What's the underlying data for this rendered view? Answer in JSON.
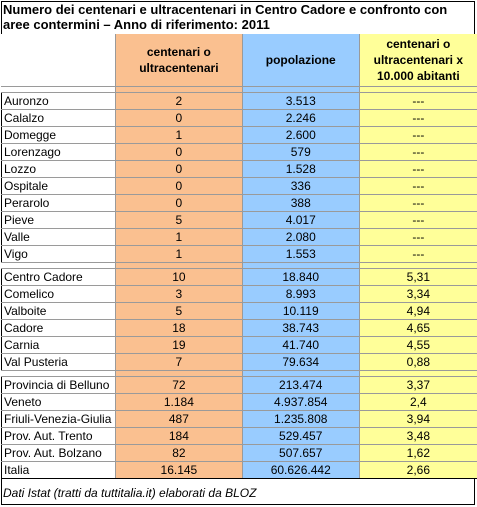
{
  "title": "Numero dei centenari e ultracentenari in Centro Cadore e confronto con aree contermini – Anno di riferimento: 2011",
  "headers": {
    "col1": "centenari o ultracentenari",
    "col2": "popolazione",
    "col3": "centenari o ultracentenari x 10.000 abitanti"
  },
  "group1": [
    {
      "name": "Auronzo",
      "cent": "2",
      "pop": "3.513",
      "rate": "---"
    },
    {
      "name": "Calalzo",
      "cent": "0",
      "pop": "2.246",
      "rate": "---"
    },
    {
      "name": "Domegge",
      "cent": "1",
      "pop": "2.600",
      "rate": "---"
    },
    {
      "name": "Lorenzago",
      "cent": "0",
      "pop": "579",
      "rate": "---"
    },
    {
      "name": "Lozzo",
      "cent": "0",
      "pop": "1.528",
      "rate": "---"
    },
    {
      "name": "Ospitale",
      "cent": "0",
      "pop": "336",
      "rate": "---"
    },
    {
      "name": "Perarolo",
      "cent": "0",
      "pop": "388",
      "rate": "---"
    },
    {
      "name": "Pieve",
      "cent": "5",
      "pop": "4.017",
      "rate": "---"
    },
    {
      "name": "Valle",
      "cent": "1",
      "pop": "2.080",
      "rate": "---"
    },
    {
      "name": "Vigo",
      "cent": "1",
      "pop": "1.553",
      "rate": "---"
    }
  ],
  "group2": [
    {
      "name": "Centro Cadore",
      "cent": "10",
      "pop": "18.840",
      "rate": "5,31"
    },
    {
      "name": "Comelico",
      "cent": "3",
      "pop": "8.993",
      "rate": "3,34"
    },
    {
      "name": "Valboite",
      "cent": "5",
      "pop": "10.119",
      "rate": "4,94"
    },
    {
      "name": "Cadore",
      "cent": "18",
      "pop": "38.743",
      "rate": "4,65"
    },
    {
      "name": "Carnia",
      "cent": "19",
      "pop": "41.740",
      "rate": "4,55"
    },
    {
      "name": "Val Pusteria",
      "cent": "7",
      "pop": "79.634",
      "rate": "0,88"
    }
  ],
  "group3": [
    {
      "name": "Provincia di Belluno",
      "cent": "72",
      "pop": "213.474",
      "rate": "3,37"
    },
    {
      "name": "Veneto",
      "cent": "1.184",
      "pop": "4.937.854",
      "rate": "2,4"
    },
    {
      "name": "Friuli-Venezia-Giulia",
      "cent": "487",
      "pop": "1.235.808",
      "rate": "3,94"
    },
    {
      "name": "Prov. Aut. Trento",
      "cent": "184",
      "pop": "529.457",
      "rate": "3,48"
    },
    {
      "name": "Prov. Aut. Bolzano",
      "cent": "82",
      "pop": "507.657",
      "rate": "1,62"
    },
    {
      "name": "Italia",
      "cent": "16.145",
      "pop": "60.626.442",
      "rate": "2,66"
    }
  ],
  "footer": "Dati Istat (tratti da tuttitalia.it) elaborati da BLOZ",
  "colors": {
    "orange": "#fac090",
    "blue": "#99ccff",
    "yellow": "#ffff99"
  }
}
